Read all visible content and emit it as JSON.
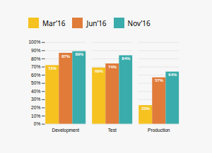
{
  "chart_data": {
    "type": "bar",
    "categories": [
      "Development",
      "Test",
      "Production"
    ],
    "series": [
      {
        "name": "Mar’16",
        "color": "#F5C220",
        "values": [
          72,
          69,
          23
        ],
        "value_labels": [
          "72%",
          "69%",
          "23%"
        ]
      },
      {
        "name": "Jun’16",
        "color": "#E07B3A",
        "values": [
          87,
          74,
          57
        ],
        "value_labels": [
          "87%",
          "74%",
          "57%"
        ]
      },
      {
        "name": "Nov’16",
        "color": "#3AACAB",
        "values": [
          89,
          84,
          64
        ],
        "value_labels": [
          "89%",
          "84%",
          "64%"
        ]
      }
    ],
    "ylim": [
      0,
      100
    ],
    "yticks": [
      {
        "value": 0,
        "label": "0%"
      },
      {
        "value": 10,
        "label": "10%"
      },
      {
        "value": 20,
        "label": "20%"
      },
      {
        "value": 30,
        "label": "30%"
      },
      {
        "value": 40,
        "label": "40%"
      },
      {
        "value": 50,
        "label": "50%"
      },
      {
        "value": 60,
        "label": "60%"
      },
      {
        "value": 70,
        "label": "70%"
      },
      {
        "value": 80,
        "label": "80%"
      },
      {
        "value": 90,
        "label": "90%"
      },
      {
        "value": 100,
        "label": "100%"
      }
    ],
    "grid": true,
    "data_labels": true,
    "legend": "top"
  }
}
